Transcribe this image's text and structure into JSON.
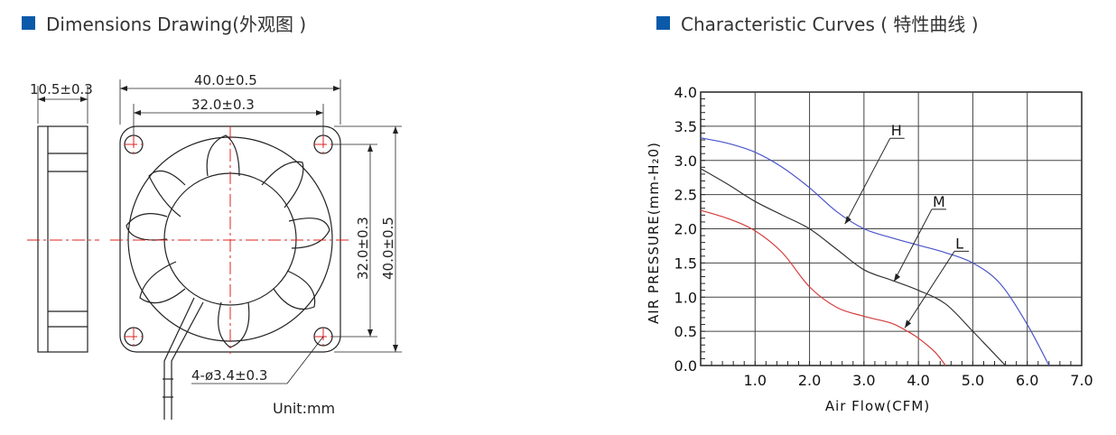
{
  "header": {
    "left_title": "Dimensions Drawing(外观图 )",
    "right_title": "Characteristic Curves ( 特性曲线 )",
    "accent_color": "#0a5aa9"
  },
  "drawing": {
    "side_thickness": "10.5±0.3",
    "outer_width": "40.0±0.5",
    "hole_spacing_h": "32.0±0.3",
    "hole_spacing_v": "32.0±0.3",
    "outer_height": "40.0±0.5",
    "holes": "4-ø3.4±0.3",
    "unit": "Unit:mm"
  },
  "chart_data": {
    "type": "line",
    "xlabel": "Air Flow(CFM)",
    "ylabel": "AIR PRESSURE(mm-H₂0)",
    "xlim": [
      0,
      7.0
    ],
    "ylim": [
      0,
      4.0
    ],
    "x_ticks": [
      "1.0",
      "2.0",
      "3.0",
      "4.0",
      "5.0",
      "6.0",
      "7.0"
    ],
    "y_ticks": [
      "0.0",
      "0.5",
      "1.0",
      "1.5",
      "2.0",
      "2.5",
      "3.0",
      "3.5",
      "4.0"
    ],
    "grid": true,
    "series": [
      {
        "name": "H",
        "color": "#4a55c8",
        "points": [
          [
            0,
            3.33
          ],
          [
            0.5,
            3.25
          ],
          [
            1.0,
            3.12
          ],
          [
            1.5,
            2.9
          ],
          [
            2.0,
            2.6
          ],
          [
            2.5,
            2.25
          ],
          [
            3.0,
            2.0
          ],
          [
            3.5,
            1.87
          ],
          [
            4.0,
            1.76
          ],
          [
            4.5,
            1.65
          ],
          [
            5.0,
            1.5
          ],
          [
            5.5,
            1.2
          ],
          [
            6.0,
            0.6
          ],
          [
            6.4,
            0.0
          ]
        ]
      },
      {
        "name": "M",
        "color": "#333333",
        "points": [
          [
            0,
            2.88
          ],
          [
            0.5,
            2.65
          ],
          [
            1.0,
            2.4
          ],
          [
            1.5,
            2.2
          ],
          [
            2.0,
            2.0
          ],
          [
            2.5,
            1.7
          ],
          [
            3.0,
            1.4
          ],
          [
            3.5,
            1.25
          ],
          [
            4.0,
            1.1
          ],
          [
            4.5,
            0.9
          ],
          [
            5.0,
            0.5
          ],
          [
            5.3,
            0.25
          ],
          [
            5.6,
            0.0
          ]
        ]
      },
      {
        "name": "L",
        "color": "#d43c3c",
        "points": [
          [
            0,
            2.27
          ],
          [
            0.5,
            2.15
          ],
          [
            1.0,
            1.97
          ],
          [
            1.5,
            1.65
          ],
          [
            2.0,
            1.15
          ],
          [
            2.5,
            0.85
          ],
          [
            3.0,
            0.72
          ],
          [
            3.5,
            0.62
          ],
          [
            3.8,
            0.5
          ],
          [
            4.0,
            0.4
          ],
          [
            4.3,
            0.2
          ],
          [
            4.5,
            0.0
          ]
        ]
      }
    ],
    "callouts": [
      {
        "label": "H",
        "x": 2.65,
        "y": 2.07
      },
      {
        "label": "M",
        "x": 3.55,
        "y": 1.23
      },
      {
        "label": "L",
        "x": 3.75,
        "y": 0.55
      }
    ]
  }
}
